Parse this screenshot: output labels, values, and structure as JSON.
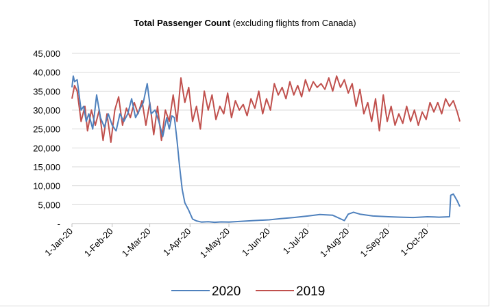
{
  "chart_data": {
    "type": "line",
    "title": "Total Passenger Count",
    "subtitle": "(excluding flights from Canada)",
    "xlabel": "",
    "ylabel": "",
    "ylim": [
      0,
      45000
    ],
    "yticks": [
      "-",
      "5,000",
      "10,000",
      "15,000",
      "20,000",
      "25,000",
      "30,000",
      "35,000",
      "40,000",
      "45,000"
    ],
    "ytick_values": [
      0,
      5000,
      10000,
      15000,
      20000,
      25000,
      30000,
      35000,
      40000,
      45000
    ],
    "xticks": [
      "1-Jan-20",
      "1-Feb-20",
      "1-Mar-20",
      "1-Apr-20",
      "1-May-20",
      "1-Jun-20",
      "1-Jul-20",
      "1-Aug-20",
      "1-Sep-20",
      "1-Oct-20"
    ],
    "x_start": "1-Jan-20",
    "x_end": "26-Oct-20",
    "grid": "horizontal",
    "legend_position": "bottom",
    "series": [
      {
        "name": "2020",
        "color": "#4f81bd",
        "points": [
          [
            "1-Jan-20",
            36000
          ],
          [
            "2-Jan-20",
            39000
          ],
          [
            "3-Jan-20",
            37500
          ],
          [
            "5-Jan-20",
            38000
          ],
          [
            "8-Jan-20",
            30000
          ],
          [
            "10-Jan-20",
            31000
          ],
          [
            "12-Jan-20",
            27000
          ],
          [
            "14-Jan-20",
            29000
          ],
          [
            "17-Jan-20",
            25000
          ],
          [
            "20-Jan-20",
            34000
          ],
          [
            "23-Jan-20",
            28000
          ],
          [
            "26-Jan-20",
            25500
          ],
          [
            "29-Jan-20",
            29000
          ],
          [
            "1-Feb-20",
            26000
          ],
          [
            "4-Feb-20",
            24500
          ],
          [
            "7-Feb-20",
            29000
          ],
          [
            "10-Feb-20",
            27000
          ],
          [
            "13-Feb-20",
            29000
          ],
          [
            "16-Feb-20",
            33000
          ],
          [
            "19-Feb-20",
            28000
          ],
          [
            "22-Feb-20",
            30000
          ],
          [
            "25-Feb-20",
            32000
          ],
          [
            "28-Feb-20",
            37000
          ],
          [
            "2-Mar-20",
            29000
          ],
          [
            "5-Mar-20",
            30000
          ],
          [
            "8-Mar-20",
            27000
          ],
          [
            "11-Mar-20",
            23000
          ],
          [
            "14-Mar-20",
            28000
          ],
          [
            "16-Mar-20",
            25000
          ],
          [
            "18-Mar-20",
            28500
          ],
          [
            "20-Mar-20",
            28000
          ],
          [
            "22-Mar-20",
            22000
          ],
          [
            "24-Mar-20",
            15000
          ],
          [
            "26-Mar-20",
            9000
          ],
          [
            "28-Mar-20",
            5500
          ],
          [
            "31-Mar-20",
            3500
          ],
          [
            "3-Apr-20",
            1200
          ],
          [
            "6-Apr-20",
            700
          ],
          [
            "10-Apr-20",
            400
          ],
          [
            "15-Apr-20",
            500
          ],
          [
            "20-Apr-20",
            350
          ],
          [
            "25-Apr-20",
            450
          ],
          [
            "1-May-20",
            400
          ],
          [
            "10-May-20",
            600
          ],
          [
            "20-May-20",
            800
          ],
          [
            "1-Jun-20",
            1000
          ],
          [
            "10-Jun-20",
            1300
          ],
          [
            "20-Jun-20",
            1600
          ],
          [
            "1-Jul-20",
            2000
          ],
          [
            "10-Jul-20",
            2400
          ],
          [
            "20-Jul-20",
            2200
          ],
          [
            "29-Jul-20",
            800
          ],
          [
            "1-Aug-20",
            2500
          ],
          [
            "5-Aug-20",
            3000
          ],
          [
            "10-Aug-20",
            2500
          ],
          [
            "20-Aug-20",
            2000
          ],
          [
            "1-Sep-20",
            1800
          ],
          [
            "10-Sep-20",
            1700
          ],
          [
            "20-Sep-20",
            1600
          ],
          [
            "1-Oct-20",
            1800
          ],
          [
            "10-Oct-20",
            1700
          ],
          [
            "18-Oct-20",
            1800
          ],
          [
            "19-Oct-20",
            7500
          ],
          [
            "21-Oct-20",
            7800
          ],
          [
            "24-Oct-20",
            6000
          ],
          [
            "26-Oct-20",
            4500
          ]
        ]
      },
      {
        "name": "2019",
        "color": "#c0504d",
        "points": [
          [
            "1-Jan-20",
            33000
          ],
          [
            "3-Jan-20",
            36500
          ],
          [
            "5-Jan-20",
            35000
          ],
          [
            "8-Jan-20",
            27000
          ],
          [
            "11-Jan-20",
            31000
          ],
          [
            "13-Jan-20",
            24500
          ],
          [
            "16-Jan-20",
            30000
          ],
          [
            "19-Jan-20",
            26000
          ],
          [
            "22-Jan-20",
            30000
          ],
          [
            "25-Jan-20",
            22000
          ],
          [
            "28-Jan-20",
            29000
          ],
          [
            "31-Jan-20",
            21500
          ],
          [
            "3-Feb-20",
            30000
          ],
          [
            "6-Feb-20",
            33500
          ],
          [
            "9-Feb-20",
            26000
          ],
          [
            "12-Feb-20",
            30500
          ],
          [
            "15-Feb-20",
            28000
          ],
          [
            "18-Feb-20",
            32000
          ],
          [
            "21-Feb-20",
            29000
          ],
          [
            "24-Feb-20",
            32500
          ],
          [
            "27-Feb-20",
            26000
          ],
          [
            "1-Mar-20",
            32000
          ],
          [
            "4-Mar-20",
            23500
          ],
          [
            "7-Mar-20",
            31000
          ],
          [
            "10-Mar-20",
            22000
          ],
          [
            "13-Mar-20",
            30000
          ],
          [
            "16-Mar-20",
            27000
          ],
          [
            "19-Mar-20",
            34000
          ],
          [
            "22-Mar-20",
            27000
          ],
          [
            "25-Mar-20",
            38500
          ],
          [
            "28-Mar-20",
            32000
          ],
          [
            "31-Mar-20",
            36000
          ],
          [
            "3-Apr-20",
            27000
          ],
          [
            "6-Apr-20",
            31000
          ],
          [
            "9-Apr-20",
            25000
          ],
          [
            "12-Apr-20",
            35000
          ],
          [
            "15-Apr-20",
            30000
          ],
          [
            "18-Apr-20",
            34000
          ],
          [
            "21-Apr-20",
            27500
          ],
          [
            "24-Apr-20",
            31000
          ],
          [
            "27-Apr-20",
            29000
          ],
          [
            "30-Apr-20",
            34500
          ],
          [
            "3-May-20",
            28000
          ],
          [
            "6-May-20",
            32500
          ],
          [
            "9-May-20",
            30000
          ],
          [
            "12-May-20",
            31500
          ],
          [
            "15-May-20",
            28500
          ],
          [
            "18-May-20",
            33000
          ],
          [
            "21-May-20",
            30500
          ],
          [
            "24-May-20",
            35000
          ],
          [
            "27-May-20",
            29000
          ],
          [
            "30-May-20",
            33000
          ],
          [
            "2-Jun-20",
            30000
          ],
          [
            "5-Jun-20",
            37000
          ],
          [
            "8-Jun-20",
            34000
          ],
          [
            "11-Jun-20",
            36000
          ],
          [
            "14-Jun-20",
            33000
          ],
          [
            "17-Jun-20",
            37500
          ],
          [
            "20-Jun-20",
            34000
          ],
          [
            "23-Jun-20",
            36500
          ],
          [
            "26-Jun-20",
            33500
          ],
          [
            "29-Jun-20",
            38000
          ],
          [
            "2-Jul-20",
            35000
          ],
          [
            "5-Jul-20",
            37500
          ],
          [
            "8-Jul-20",
            36000
          ],
          [
            "11-Jul-20",
            37000
          ],
          [
            "14-Jul-20",
            35500
          ],
          [
            "17-Jul-20",
            38500
          ],
          [
            "20-Jul-20",
            35000
          ],
          [
            "23-Jul-20",
            39000
          ],
          [
            "26-Jul-20",
            36000
          ],
          [
            "29-Jul-20",
            38000
          ],
          [
            "1-Aug-20",
            34500
          ],
          [
            "4-Aug-20",
            37000
          ],
          [
            "7-Aug-20",
            31000
          ],
          [
            "10-Aug-20",
            35500
          ],
          [
            "13-Aug-20",
            29000
          ],
          [
            "16-Aug-20",
            32000
          ],
          [
            "19-Aug-20",
            27000
          ],
          [
            "22-Aug-20",
            33000
          ],
          [
            "25-Aug-20",
            24500
          ],
          [
            "28-Aug-20",
            34000
          ],
          [
            "31-Aug-20",
            27000
          ],
          [
            "3-Sep-20",
            31000
          ],
          [
            "6-Sep-20",
            26000
          ],
          [
            "9-Sep-20",
            29000
          ],
          [
            "12-Sep-20",
            26500
          ],
          [
            "15-Sep-20",
            31000
          ],
          [
            "18-Sep-20",
            27000
          ],
          [
            "21-Sep-20",
            30000
          ],
          [
            "24-Sep-20",
            26000
          ],
          [
            "27-Sep-20",
            29500
          ],
          [
            "30-Sep-20",
            27500
          ],
          [
            "3-Oct-20",
            32000
          ],
          [
            "6-Oct-20",
            29500
          ],
          [
            "9-Oct-20",
            32000
          ],
          [
            "12-Oct-20",
            29000
          ],
          [
            "15-Oct-20",
            33000
          ],
          [
            "18-Oct-20",
            31000
          ],
          [
            "21-Oct-20",
            32500
          ],
          [
            "24-Oct-20",
            29500
          ],
          [
            "26-Oct-20",
            27000
          ]
        ]
      }
    ]
  }
}
